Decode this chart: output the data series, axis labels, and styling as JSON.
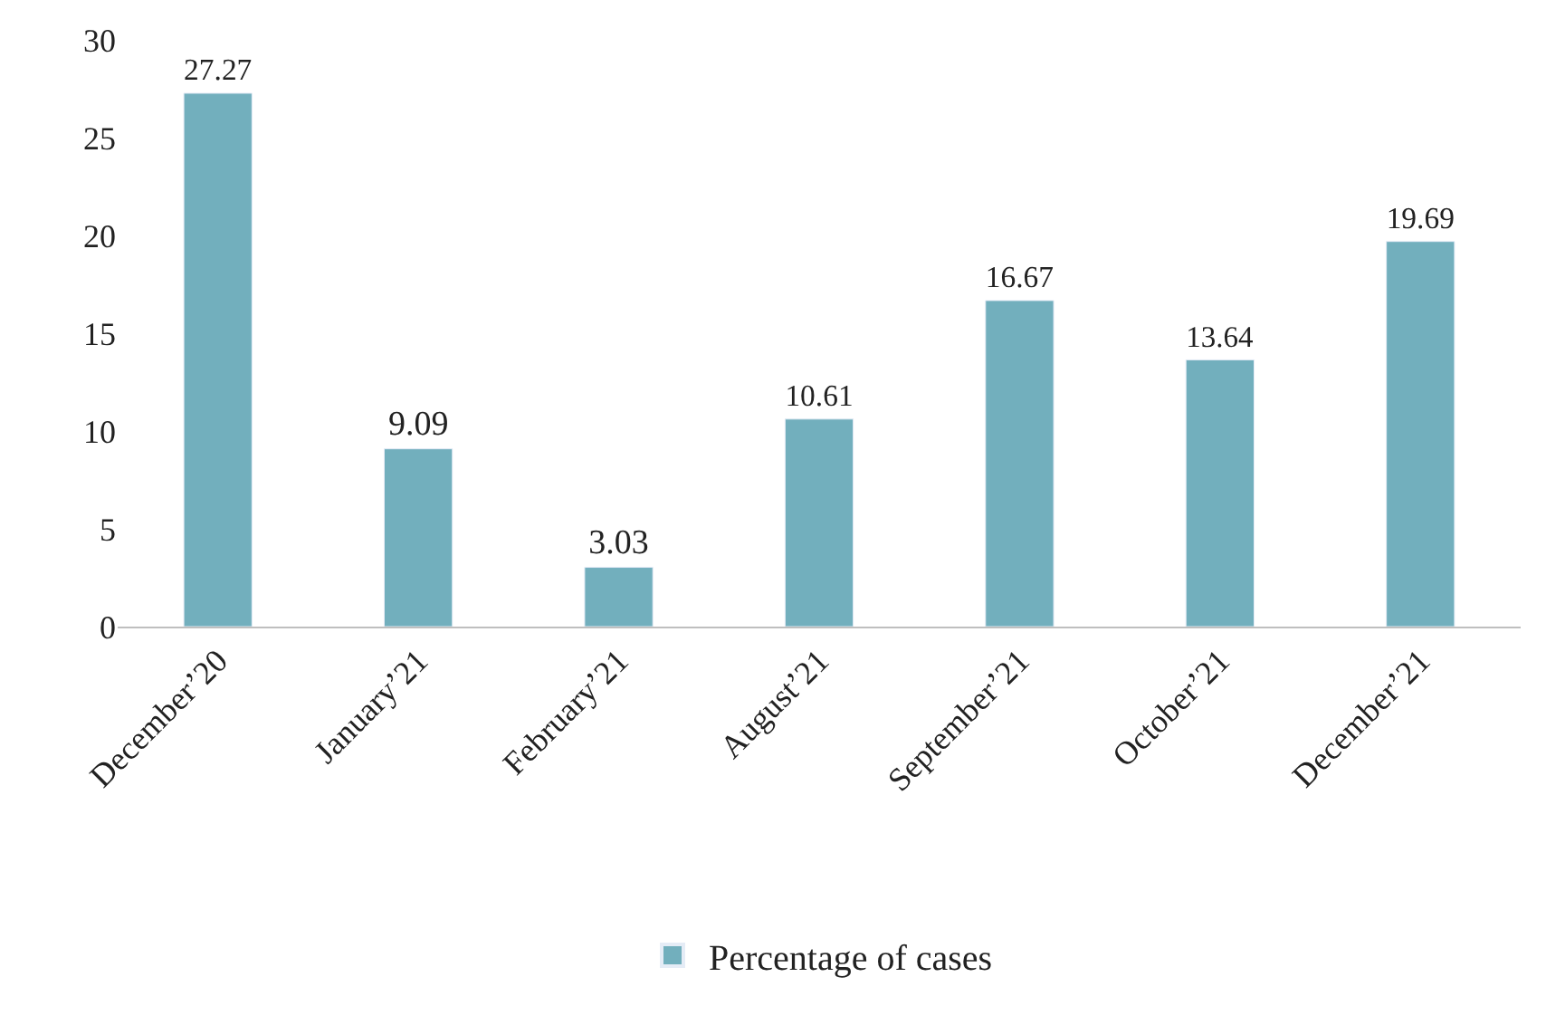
{
  "chart_data": {
    "type": "bar",
    "categories": [
      "December’20",
      "January’21",
      "February’21",
      "August’21",
      "September’21",
      "October’21",
      "December’21"
    ],
    "series": [
      {
        "name": "Percentage of cases",
        "color": "#72afbd",
        "values": [
          27.27,
          9.09,
          3.03,
          10.61,
          16.67,
          13.64,
          19.69
        ]
      }
    ],
    "ylim": [
      0,
      30
    ],
    "yticks": [
      0,
      5,
      10,
      15,
      20,
      25,
      30
    ],
    "grid": false,
    "legend": "bottom",
    "data_labels": true
  }
}
